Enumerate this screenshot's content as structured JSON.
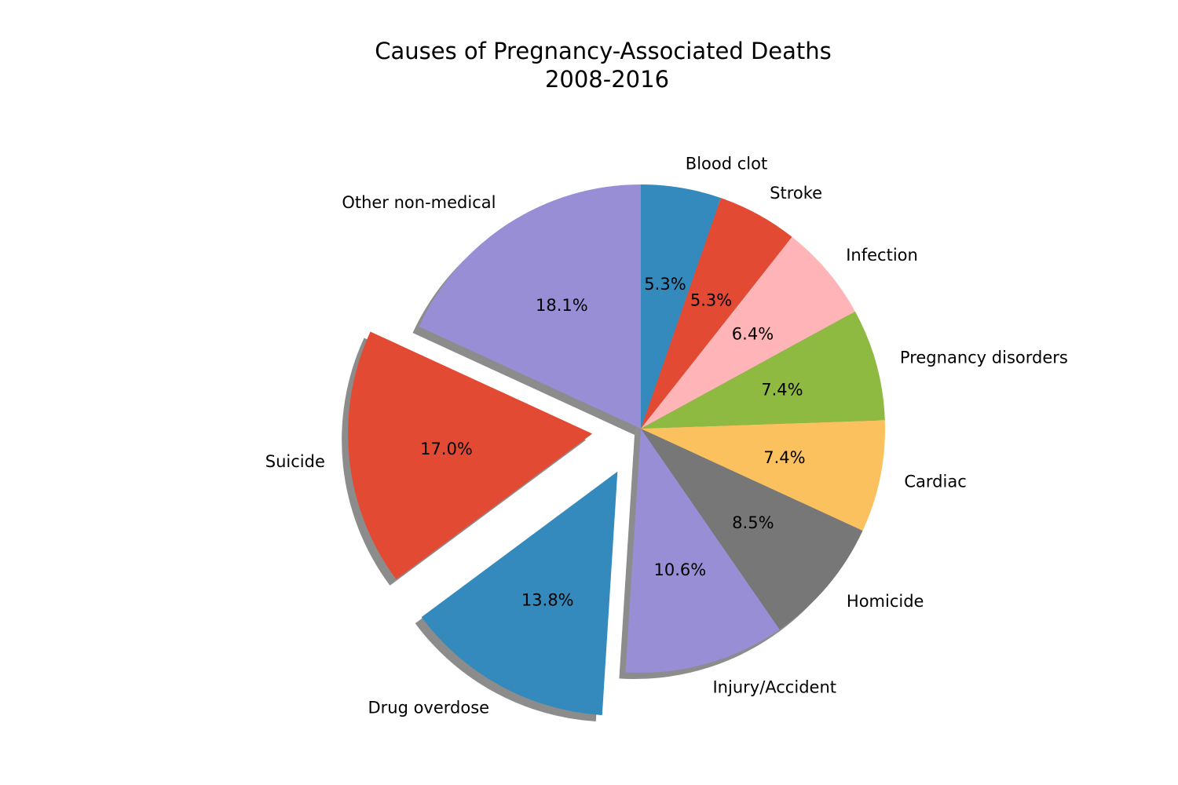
{
  "chart_data": {
    "type": "pie",
    "title": "Causes of Pregnancy-Associated Deaths",
    "subtitle": "2008-2016",
    "categories": [
      "Other non-medical",
      "Suicide",
      "Drug overdose",
      "Injury/Accident",
      "Homicide",
      "Cardiac",
      "Pregnancy disorders",
      "Infection",
      "Stroke",
      "Blood clot"
    ],
    "values": [
      18.1,
      17.0,
      13.8,
      10.6,
      8.5,
      7.4,
      7.4,
      6.4,
      5.3,
      5.3
    ],
    "value_labels": [
      "18.1%",
      "17.0%",
      "13.8%",
      "10.6%",
      "8.5%",
      "7.4%",
      "7.4%",
      "6.4%",
      "5.3%",
      "5.3%"
    ],
    "exploded": [
      "Suicide",
      "Drug overdose"
    ],
    "start_angle_deg": 90,
    "direction": "counterclockwise",
    "shadow": true,
    "legend": "none",
    "colors": [
      "#988ED5",
      "#E24A33",
      "#348ABD",
      "#988ED5",
      "#777777",
      "#FBC15E",
      "#8EBA42",
      "#FFB5B8",
      "#E24A33",
      "#348ABD"
    ]
  }
}
